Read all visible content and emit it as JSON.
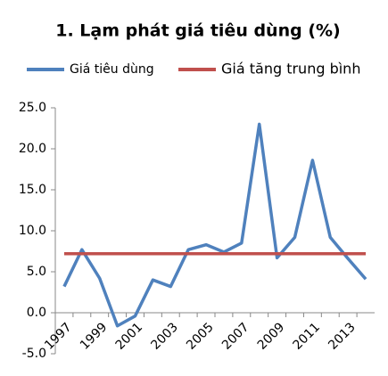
{
  "chart_data": {
    "type": "line",
    "title": "1. Lạm phát giá tiêu dùng (%)",
    "categories": [
      "1997",
      null,
      "1999",
      null,
      "2001",
      null,
      "2003",
      null,
      "2005",
      null,
      "2007",
      null,
      "2009",
      null,
      "2011",
      null,
      "2013",
      null
    ],
    "series": [
      {
        "name": "Giá tiêu dùng",
        "color": "#4f81bd",
        "values": [
          3.2,
          7.7,
          4.2,
          -1.6,
          -0.4,
          4.0,
          3.2,
          7.7,
          8.3,
          7.4,
          8.5,
          23.0,
          6.7,
          9.2,
          18.6,
          9.2,
          6.6,
          4.1
        ]
      },
      {
        "name": "Giá tăng trung bình",
        "color": "#c0504d",
        "values": [
          7.2,
          7.2,
          7.2,
          7.2,
          7.2,
          7.2,
          7.2,
          7.2,
          7.2,
          7.2,
          7.2,
          7.2,
          7.2,
          7.2,
          7.2,
          7.2,
          7.2,
          7.2
        ]
      }
    ],
    "ylim": [
      -5,
      25
    ],
    "yticks": [
      {
        "value": -5,
        "label": "-5.0"
      },
      {
        "value": 0,
        "label": "0.0"
      },
      {
        "value": 5,
        "label": "5.0"
      },
      {
        "value": 10,
        "label": "10.0"
      },
      {
        "value": 15,
        "label": "15.0"
      },
      {
        "value": 20,
        "label": "20.0"
      },
      {
        "value": 25,
        "label": "25.0"
      }
    ],
    "grid": false,
    "legend": "top"
  }
}
